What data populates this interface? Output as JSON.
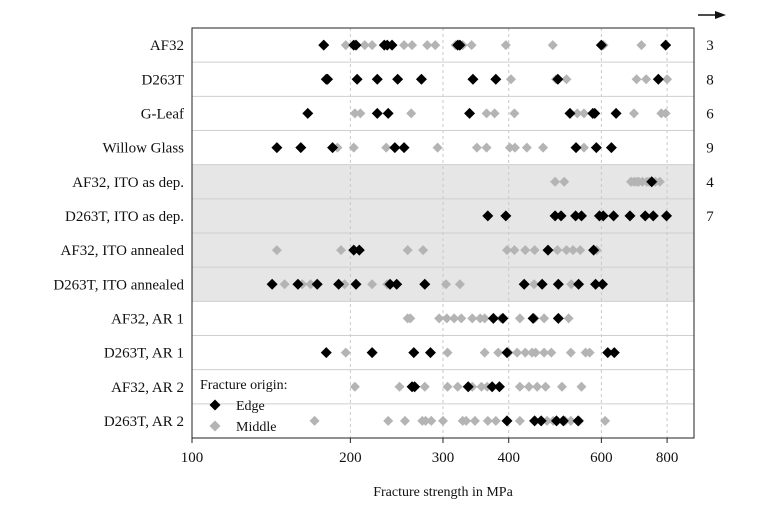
{
  "chart_data": {
    "type": "scatter",
    "x_scale": "log",
    "xlim": [
      100,
      900
    ],
    "xlabel": "Fracture strength in MPa",
    "x_ticks": [
      100,
      200,
      300,
      400,
      600,
      800
    ],
    "x_tick_labels": [
      "100",
      "200",
      "300",
      "400",
      "600",
      "800"
    ],
    "grid": "vertical dashed",
    "categories": [
      "AF32",
      "D263T",
      "G-Leaf",
      "Willow Glass",
      "AF32, ITO as dep.",
      "D263T, ITO as dep.",
      "AF32, ITO annealed",
      "D263T, ITO annealed",
      "AF32, AR 1",
      "D263T, AR 1",
      "AF32, AR 2",
      "D263T, AR 2"
    ],
    "shaded_categories": [
      "AF32, ITO as dep.",
      "D263T, ITO as dep.",
      "AF32, ITO annealed",
      "D263T, ITO annealed"
    ],
    "counts": [
      "3",
      "8",
      "6",
      "9",
      "4",
      "7",
      "",
      "",
      "",
      "",
      "",
      ""
    ],
    "legend": {
      "title": "Fracture origin:",
      "position": "bottom-left"
    },
    "colors": {
      "edge": "#000000",
      "middle": "#b4b4b4",
      "shade": "#e6e6e6"
    },
    "series": [
      {
        "name": "Edge",
        "points": [
          [
            0,
            178
          ],
          [
            0,
            203
          ],
          [
            0,
            205
          ],
          [
            0,
            232
          ],
          [
            0,
            235
          ],
          [
            0,
            240
          ],
          [
            0,
            320
          ],
          [
            0,
            323
          ],
          [
            0,
            600
          ],
          [
            0,
            795
          ],
          [
            1,
            180
          ],
          [
            1,
            181
          ],
          [
            1,
            206
          ],
          [
            1,
            225
          ],
          [
            1,
            246
          ],
          [
            1,
            273
          ],
          [
            1,
            342
          ],
          [
            1,
            378
          ],
          [
            1,
            496
          ],
          [
            1,
            770
          ],
          [
            2,
            166
          ],
          [
            2,
            225
          ],
          [
            2,
            236
          ],
          [
            2,
            337
          ],
          [
            2,
            523
          ],
          [
            2,
            578
          ],
          [
            2,
            583
          ],
          [
            2,
            640
          ],
          [
            3,
            145
          ],
          [
            3,
            161
          ],
          [
            3,
            185
          ],
          [
            3,
            243
          ],
          [
            3,
            253
          ],
          [
            3,
            537
          ],
          [
            3,
            587
          ],
          [
            3,
            627
          ],
          [
            4,
            748
          ],
          [
            5,
            365
          ],
          [
            5,
            395
          ],
          [
            5,
            490
          ],
          [
            5,
            503
          ],
          [
            5,
            536
          ],
          [
            5,
            550
          ],
          [
            5,
            595
          ],
          [
            5,
            605
          ],
          [
            5,
            633
          ],
          [
            5,
            680
          ],
          [
            5,
            727
          ],
          [
            5,
            753
          ],
          [
            5,
            798
          ],
          [
            6,
            203
          ],
          [
            6,
            208
          ],
          [
            6,
            475
          ],
          [
            6,
            580
          ],
          [
            7,
            142
          ],
          [
            7,
            159
          ],
          [
            7,
            173
          ],
          [
            7,
            190
          ],
          [
            7,
            205
          ],
          [
            7,
            238
          ],
          [
            7,
            245
          ],
          [
            7,
            277
          ],
          [
            7,
            428
          ],
          [
            7,
            463
          ],
          [
            7,
            497
          ],
          [
            7,
            543
          ],
          [
            7,
            585
          ],
          [
            7,
            603
          ],
          [
            8,
            374
          ],
          [
            8,
            390
          ],
          [
            8,
            445
          ],
          [
            8,
            497
          ],
          [
            9,
            180
          ],
          [
            9,
            220
          ],
          [
            9,
            264
          ],
          [
            9,
            284
          ],
          [
            9,
            397
          ],
          [
            9,
            617
          ],
          [
            9,
            635
          ],
          [
            10,
            262
          ],
          [
            10,
            265
          ],
          [
            10,
            335
          ],
          [
            10,
            372
          ],
          [
            10,
            384
          ],
          [
            11,
            397
          ],
          [
            11,
            448
          ],
          [
            11,
            461
          ],
          [
            11,
            493
          ],
          [
            11,
            508
          ],
          [
            11,
            542
          ]
        ]
      },
      {
        "name": "Middle",
        "points": [
          [
            0,
            196
          ],
          [
            0,
            213
          ],
          [
            0,
            220
          ],
          [
            0,
            253
          ],
          [
            0,
            262
          ],
          [
            0,
            280
          ],
          [
            0,
            290
          ],
          [
            0,
            317
          ],
          [
            0,
            327
          ],
          [
            0,
            340
          ],
          [
            0,
            395
          ],
          [
            0,
            485
          ],
          [
            0,
            606
          ],
          [
            0,
            715
          ],
          [
            0,
            795
          ],
          [
            1,
            404
          ],
          [
            1,
            492
          ],
          [
            1,
            515
          ],
          [
            1,
            700
          ],
          [
            1,
            730
          ],
          [
            1,
            800
          ],
          [
            2,
            204
          ],
          [
            2,
            209
          ],
          [
            2,
            261
          ],
          [
            2,
            363
          ],
          [
            2,
            376
          ],
          [
            2,
            410
          ],
          [
            2,
            540
          ],
          [
            2,
            556
          ],
          [
            2,
            692
          ],
          [
            2,
            780
          ],
          [
            2,
            795
          ],
          [
            3,
            189
          ],
          [
            3,
            203
          ],
          [
            3,
            234
          ],
          [
            3,
            293
          ],
          [
            3,
            348
          ],
          [
            3,
            363
          ],
          [
            3,
            402
          ],
          [
            3,
            411
          ],
          [
            3,
            433
          ],
          [
            3,
            465
          ],
          [
            3,
            556
          ],
          [
            4,
            490
          ],
          [
            4,
            510
          ],
          [
            4,
            683
          ],
          [
            4,
            692
          ],
          [
            4,
            700
          ],
          [
            4,
            707
          ],
          [
            4,
            718
          ],
          [
            4,
            732
          ],
          [
            4,
            740
          ],
          [
            4,
            760
          ],
          [
            4,
            775
          ],
          [
            6,
            145
          ],
          [
            6,
            192
          ],
          [
            6,
            257
          ],
          [
            6,
            275
          ],
          [
            6,
            397
          ],
          [
            6,
            410
          ],
          [
            6,
            430
          ],
          [
            6,
            448
          ],
          [
            6,
            495
          ],
          [
            6,
            515
          ],
          [
            6,
            530
          ],
          [
            6,
            547
          ],
          [
            6,
            588
          ],
          [
            7,
            150
          ],
          [
            7,
            162
          ],
          [
            7,
            168
          ],
          [
            7,
            195
          ],
          [
            7,
            220
          ],
          [
            7,
            235
          ],
          [
            7,
            304
          ],
          [
            7,
            323
          ],
          [
            7,
            447
          ],
          [
            7,
            526
          ],
          [
            8,
            257
          ],
          [
            8,
            260
          ],
          [
            8,
            295
          ],
          [
            8,
            305
          ],
          [
            8,
            315
          ],
          [
            8,
            325
          ],
          [
            8,
            341
          ],
          [
            8,
            353
          ],
          [
            8,
            360
          ],
          [
            8,
            387
          ],
          [
            8,
            420
          ],
          [
            8,
            448
          ],
          [
            8,
            467
          ],
          [
            8,
            520
          ],
          [
            9,
            196
          ],
          [
            9,
            306
          ],
          [
            9,
            360
          ],
          [
            9,
            382
          ],
          [
            9,
            400
          ],
          [
            9,
            415
          ],
          [
            9,
            430
          ],
          [
            9,
            443
          ],
          [
            9,
            450
          ],
          [
            9,
            467
          ],
          [
            9,
            482
          ],
          [
            9,
            525
          ],
          [
            9,
            560
          ],
          [
            9,
            570
          ],
          [
            10,
            204
          ],
          [
            10,
            248
          ],
          [
            10,
            277
          ],
          [
            10,
            306
          ],
          [
            10,
            320
          ],
          [
            10,
            341
          ],
          [
            10,
            355
          ],
          [
            10,
            364
          ],
          [
            10,
            385
          ],
          [
            10,
            420
          ],
          [
            10,
            437
          ],
          [
            10,
            453
          ],
          [
            10,
            470
          ],
          [
            10,
            505
          ],
          [
            10,
            550
          ],
          [
            11,
            171
          ],
          [
            11,
            236
          ],
          [
            11,
            254
          ],
          [
            11,
            274
          ],
          [
            11,
            278
          ],
          [
            11,
            285
          ],
          [
            11,
            300
          ],
          [
            11,
            327
          ],
          [
            11,
            332
          ],
          [
            11,
            345
          ],
          [
            11,
            365
          ],
          [
            11,
            378
          ],
          [
            11,
            420
          ],
          [
            11,
            447
          ],
          [
            11,
            473
          ],
          [
            11,
            486
          ],
          [
            11,
            512
          ],
          [
            11,
            525
          ],
          [
            11,
            545
          ],
          [
            11,
            610
          ]
        ]
      }
    ]
  }
}
